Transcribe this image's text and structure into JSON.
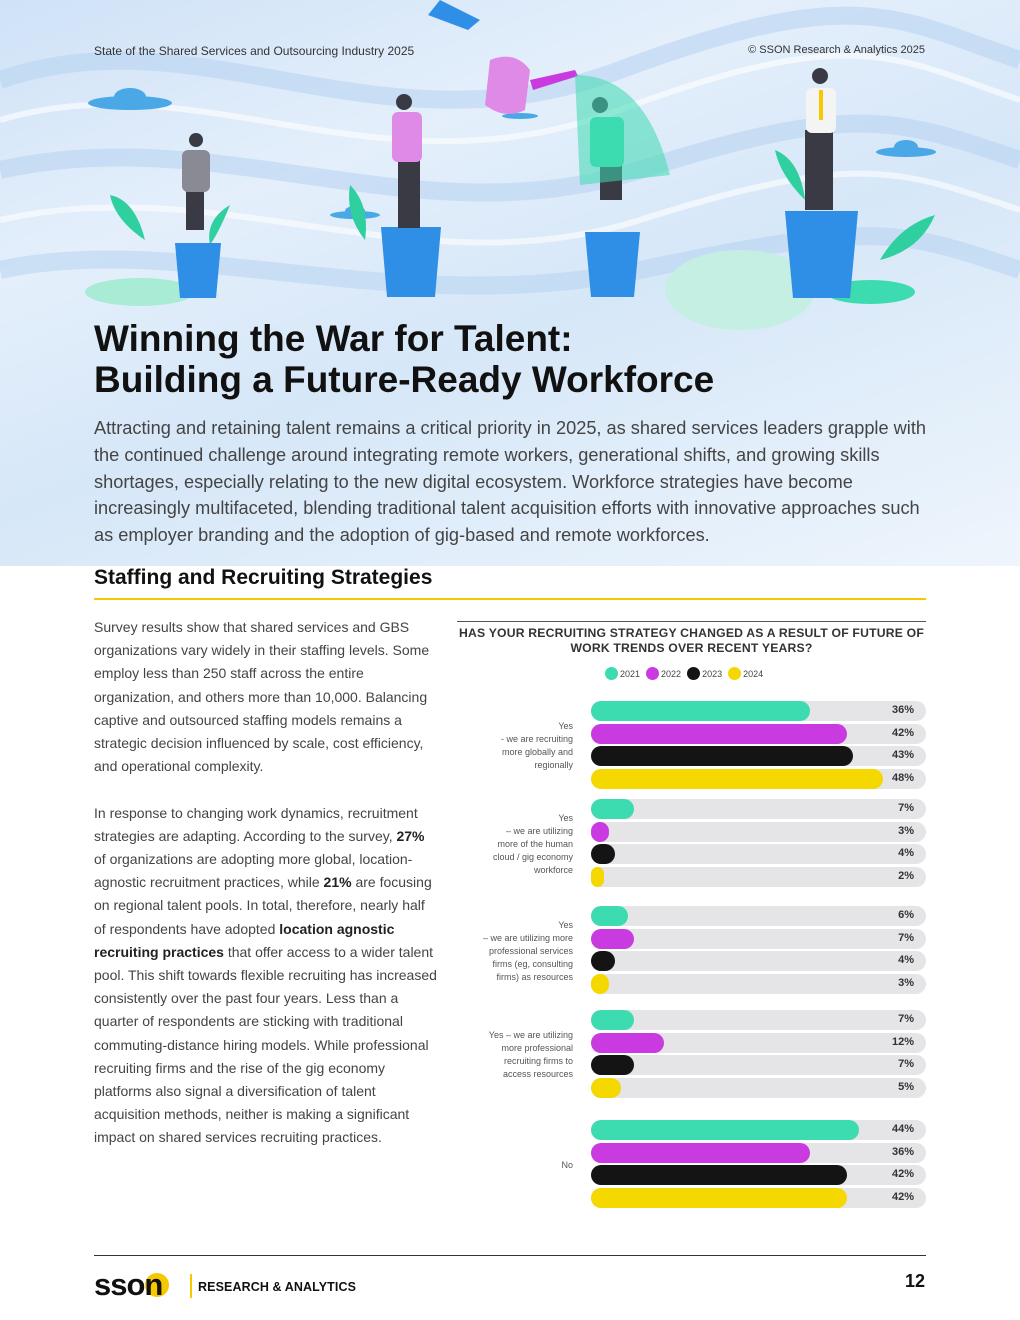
{
  "header": {
    "report_name": "State of the Shared Services and Outsourcing Industry 2025",
    "copyright": "© SSON Research & Analytics 2025"
  },
  "hero": {
    "title_line1": "Winning the War for Talent:",
    "title_line2": "Building a Future-Ready Workforce",
    "intro": "Attracting and retaining talent remains a critical priority in 2025, as shared services leaders grapple with the continued challenge around integrating remote workers, generational shifts, and growing skills shortages, especially relating to the new digital ecosystem. Workforce strategies have become increasingly multifaceted, blending traditional talent acquisition efforts with innovative approaches such as employer branding and the adoption of gig-based and remote workforces."
  },
  "section": {
    "title": "Staffing and Recruiting Strategies",
    "p1": "Survey results show that shared services and GBS organizations vary widely in their staffing levels. Some employ less than 250 staff across the entire organization, and others more than 10,000. Balancing captive and outsourced staffing models remains a strategic decision influenced by scale, cost efficiency, and operational complexity.",
    "p2": {
      "t1": "In response to changing work dynamics, recruitment strategies are adapting. According to the survey, ",
      "b1": "27%",
      "t2": " of organizations are adopting more global, location-agnostic recruitment practices, while ",
      "b2": "21%",
      "t3": " are focusing on regional talent pools. In total, therefore, nearly half of respondents have adopted ",
      "b3": "location agnostic recruiting practices",
      "t4": " that offer access to a wider talent pool. This shift towards flexible recruiting has increased consistently over the past four years. Less than a quarter of respondents are sticking with traditional commuting-distance hiring models. While professional recruiting firms and the rise of the gig economy platforms also signal a diversification of talent acquisition methods, neither is making a significant impact on shared services recruiting practices."
    }
  },
  "colors": {
    "teal": "#3ddbb0",
    "magenta": "#c93be0",
    "black": "#141414",
    "yellow": "#f5d800",
    "track": "#e5e5e8",
    "accent": "#f5c800"
  },
  "chart_data": {
    "type": "bar",
    "orientation": "horizontal",
    "title": "HAS YOUR RECRUITING STRATEGY CHANGED AS A RESULT OF FUTURE OF WORK TRENDS OVER RECENT YEARS?",
    "legend": [
      "2021",
      "2022",
      "2023",
      "2024"
    ],
    "legend_placement": "top",
    "xlim": [
      0,
      55
    ],
    "unit": "%",
    "categories": [
      "Yes\n- we are recruiting\nmore globally and\nregionally",
      "Yes\n– we are utilizing\nmore of the human\ncloud / gig economy\nworkforce",
      "Yes\n– we are utilizing more\nprofessional services\nfirms (eg, consulting\nfirms) as resources",
      "Yes – we are utilizing\nmore professional\nrecruiting firms to\naccess resources",
      "No"
    ],
    "series": [
      {
        "name": "2021",
        "values": [
          36,
          7,
          6,
          7,
          44
        ]
      },
      {
        "name": "2022",
        "values": [
          42,
          3,
          7,
          12,
          36
        ]
      },
      {
        "name": "2023",
        "values": [
          43,
          4,
          4,
          7,
          42
        ]
      },
      {
        "name": "2024",
        "values": [
          48,
          2,
          3,
          5,
          42
        ]
      }
    ]
  },
  "footer": {
    "logo_text": "sson",
    "logo_tagline": "RESEARCH & ANALYTICS",
    "page_number": "12"
  }
}
